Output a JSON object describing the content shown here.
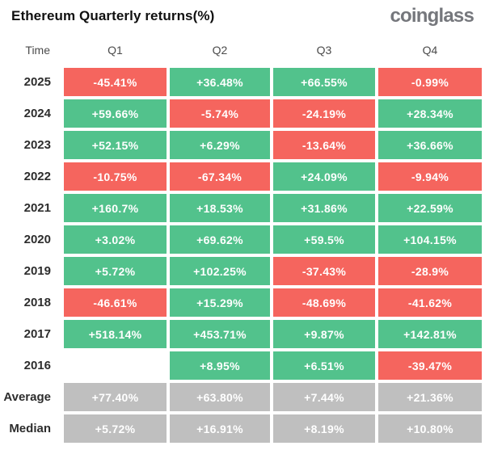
{
  "header": {
    "title": "Ethereum Quarterly returns(%)",
    "logo": "coinglass"
  },
  "colors": {
    "positive": "#52C28C",
    "negative": "#F5655E",
    "neutral": "#BFBFBF"
  },
  "table": {
    "columns": [
      "Time",
      "Q1",
      "Q2",
      "Q3",
      "Q4"
    ],
    "rows": [
      {
        "label": "2025",
        "cells": [
          {
            "text": "-45.41%",
            "type": "negative"
          },
          {
            "text": "+36.48%",
            "type": "positive"
          },
          {
            "text": "+66.55%",
            "type": "positive"
          },
          {
            "text": "-0.99%",
            "type": "negative"
          }
        ]
      },
      {
        "label": "2024",
        "cells": [
          {
            "text": "+59.66%",
            "type": "positive"
          },
          {
            "text": "-5.74%",
            "type": "negative"
          },
          {
            "text": "-24.19%",
            "type": "negative"
          },
          {
            "text": "+28.34%",
            "type": "positive"
          }
        ]
      },
      {
        "label": "2023",
        "cells": [
          {
            "text": "+52.15%",
            "type": "positive"
          },
          {
            "text": "+6.29%",
            "type": "positive"
          },
          {
            "text": "-13.64%",
            "type": "negative"
          },
          {
            "text": "+36.66%",
            "type": "positive"
          }
        ]
      },
      {
        "label": "2022",
        "cells": [
          {
            "text": "-10.75%",
            "type": "negative"
          },
          {
            "text": "-67.34%",
            "type": "negative"
          },
          {
            "text": "+24.09%",
            "type": "positive"
          },
          {
            "text": "-9.94%",
            "type": "negative"
          }
        ]
      },
      {
        "label": "2021",
        "cells": [
          {
            "text": "+160.7%",
            "type": "positive"
          },
          {
            "text": "+18.53%",
            "type": "positive"
          },
          {
            "text": "+31.86%",
            "type": "positive"
          },
          {
            "text": "+22.59%",
            "type": "positive"
          }
        ]
      },
      {
        "label": "2020",
        "cells": [
          {
            "text": "+3.02%",
            "type": "positive"
          },
          {
            "text": "+69.62%",
            "type": "positive"
          },
          {
            "text": "+59.5%",
            "type": "positive"
          },
          {
            "text": "+104.15%",
            "type": "positive"
          }
        ]
      },
      {
        "label": "2019",
        "cells": [
          {
            "text": "+5.72%",
            "type": "positive"
          },
          {
            "text": "+102.25%",
            "type": "positive"
          },
          {
            "text": "-37.43%",
            "type": "negative"
          },
          {
            "text": "-28.9%",
            "type": "negative"
          }
        ]
      },
      {
        "label": "2018",
        "cells": [
          {
            "text": "-46.61%",
            "type": "negative"
          },
          {
            "text": "+15.29%",
            "type": "positive"
          },
          {
            "text": "-48.69%",
            "type": "negative"
          },
          {
            "text": "-41.62%",
            "type": "negative"
          }
        ]
      },
      {
        "label": "2017",
        "cells": [
          {
            "text": "+518.14%",
            "type": "positive"
          },
          {
            "text": "+453.71%",
            "type": "positive"
          },
          {
            "text": "+9.87%",
            "type": "positive"
          },
          {
            "text": "+142.81%",
            "type": "positive"
          }
        ]
      },
      {
        "label": "2016",
        "cells": [
          {
            "text": "",
            "type": "empty"
          },
          {
            "text": "+8.95%",
            "type": "positive"
          },
          {
            "text": "+6.51%",
            "type": "positive"
          },
          {
            "text": "-39.47%",
            "type": "negative"
          }
        ]
      },
      {
        "label": "Average",
        "cells": [
          {
            "text": "+77.40%",
            "type": "neutral"
          },
          {
            "text": "+63.80%",
            "type": "neutral"
          },
          {
            "text": "+7.44%",
            "type": "neutral"
          },
          {
            "text": "+21.36%",
            "type": "neutral"
          }
        ]
      },
      {
        "label": "Median",
        "cells": [
          {
            "text": "+5.72%",
            "type": "neutral"
          },
          {
            "text": "+16.91%",
            "type": "neutral"
          },
          {
            "text": "+8.19%",
            "type": "neutral"
          },
          {
            "text": "+10.80%",
            "type": "neutral"
          }
        ]
      }
    ]
  },
  "chart_data": {
    "type": "table",
    "title": "Ethereum Quarterly returns(%)",
    "columns": [
      "Q1",
      "Q2",
      "Q3",
      "Q4"
    ],
    "row_labels": [
      "2025",
      "2024",
      "2023",
      "2022",
      "2021",
      "2020",
      "2019",
      "2018",
      "2017",
      "2016",
      "Average",
      "Median"
    ],
    "values": [
      [
        -45.41,
        36.48,
        66.55,
        -0.99
      ],
      [
        59.66,
        -5.74,
        -24.19,
        28.34
      ],
      [
        52.15,
        6.29,
        -13.64,
        36.66
      ],
      [
        -10.75,
        -67.34,
        24.09,
        -9.94
      ],
      [
        160.7,
        18.53,
        31.86,
        22.59
      ],
      [
        3.02,
        69.62,
        59.5,
        104.15
      ],
      [
        5.72,
        102.25,
        -37.43,
        -28.9
      ],
      [
        -46.61,
        15.29,
        -48.69,
        -41.62
      ],
      [
        518.14,
        453.71,
        9.87,
        142.81
      ],
      [
        null,
        8.95,
        6.51,
        -39.47
      ],
      [
        77.4,
        63.8,
        7.44,
        21.36
      ],
      [
        5.72,
        16.91,
        8.19,
        10.8
      ]
    ],
    "legend": "green = positive quarter, red = negative quarter, gray = aggregate rows"
  }
}
